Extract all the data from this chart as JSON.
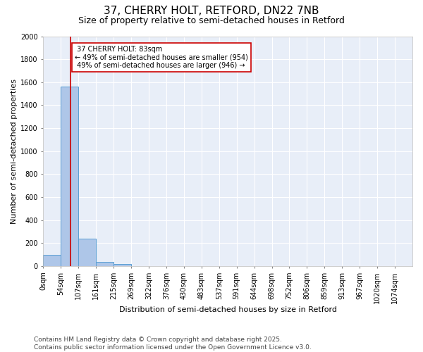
{
  "title1": "37, CHERRY HOLT, RETFORD, DN22 7NB",
  "title2": "Size of property relative to semi-detached houses in Retford",
  "xlabel": "Distribution of semi-detached houses by size in Retford",
  "ylabel": "Number of semi-detached properties",
  "bin_labels": [
    "0sqm",
    "54sqm",
    "107sqm",
    "161sqm",
    "215sqm",
    "269sqm",
    "322sqm",
    "376sqm",
    "430sqm",
    "483sqm",
    "537sqm",
    "591sqm",
    "644sqm",
    "698sqm",
    "752sqm",
    "806sqm",
    "859sqm",
    "913sqm",
    "967sqm",
    "1020sqm",
    "1074sqm"
  ],
  "bar_values": [
    95,
    1560,
    240,
    38,
    15,
    0,
    0,
    0,
    0,
    0,
    0,
    0,
    0,
    0,
    0,
    0,
    0,
    0,
    0,
    0,
    0
  ],
  "bar_color": "#aec6e8",
  "bar_edge_color": "#5a9fd4",
  "red_line_color": "#cc0000",
  "annotation_box_color": "#cc0000",
  "marker_label": "37 CHERRY HOLT: 83sqm",
  "smaller_pct": 49,
  "smaller_count": 954,
  "larger_pct": 49,
  "larger_count": 946,
  "ylim": [
    0,
    2000
  ],
  "yticks": [
    0,
    200,
    400,
    600,
    800,
    1000,
    1200,
    1400,
    1600,
    1800,
    2000
  ],
  "background_color": "#e8eef8",
  "grid_color": "#ffffff",
  "footer": "Contains HM Land Registry data © Crown copyright and database right 2025.\nContains public sector information licensed under the Open Government Licence v3.0.",
  "title_fontsize": 11,
  "subtitle_fontsize": 9,
  "axis_label_fontsize": 8,
  "tick_fontsize": 7,
  "annotation_fontsize": 7,
  "footer_fontsize": 6.5
}
